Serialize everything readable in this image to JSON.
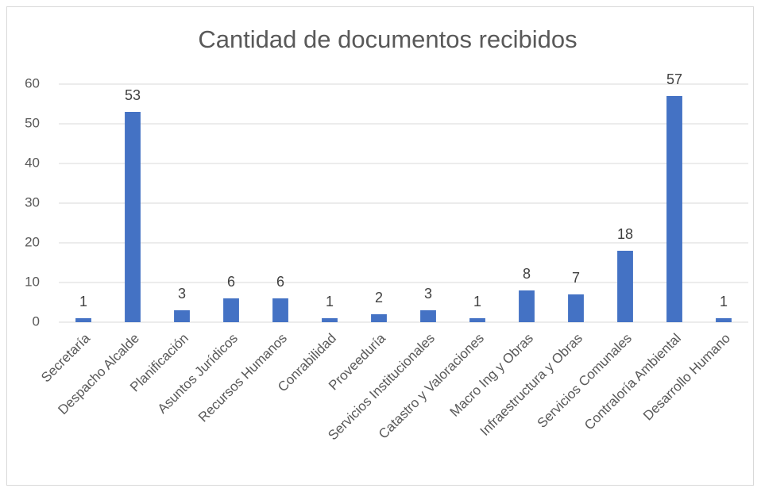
{
  "chart_data": {
    "type": "bar",
    "title": "Cantidad de documentos recibidos",
    "categories": [
      "Secretaría",
      "Despacho Alcalde",
      "Planificación",
      "Asuntos Jurídicos",
      "Recursos Humanos",
      "Conrabilidad",
      "Proveeduría",
      "Servicios Institucionales",
      "Catastro y Valoraciones",
      "Macro Ing y Obras",
      "Infraestructura y Obras",
      "Servicios Comunales",
      "Contraloría Ambiental",
      "Desarrollo Humano"
    ],
    "values": [
      1,
      53,
      3,
      6,
      6,
      1,
      2,
      3,
      1,
      8,
      7,
      18,
      57,
      1
    ],
    "color": "#4472c4",
    "ylim": [
      0,
      60
    ],
    "yticks": [
      0,
      10,
      20,
      30,
      40,
      50,
      60
    ],
    "grid": true
  }
}
